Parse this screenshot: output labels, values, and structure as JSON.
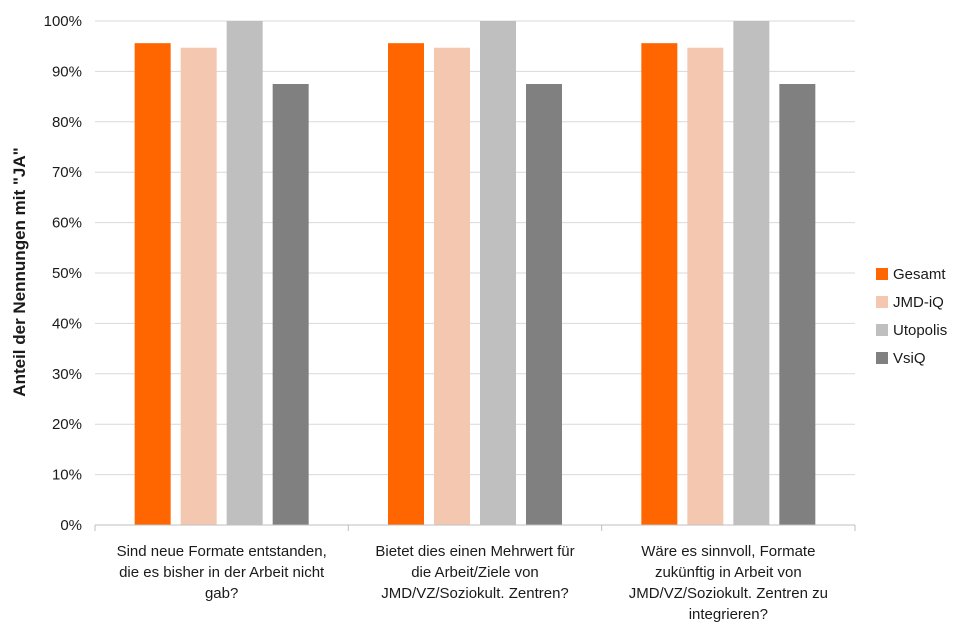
{
  "chart_data": {
    "type": "bar",
    "ylabel": "Anteil der Nennungen mit   \"JA\"",
    "ylim": [
      0,
      100
    ],
    "yticks": [
      0,
      10,
      20,
      30,
      40,
      50,
      60,
      70,
      80,
      90,
      100
    ],
    "ytick_format": "%",
    "grid": true,
    "legend_position": "right",
    "categories": [
      [
        "Sind neue Formate entstanden,",
        "die es bisher in der Arbeit nicht",
        "gab?"
      ],
      [
        "Bietet dies einen Mehrwert für",
        "die Arbeit/Ziele von",
        "JMD/VZ/Soziokult. Zentren?"
      ],
      [
        "Wäre es sinnvoll, Formate",
        "zukünftig  in Arbeit von",
        "JMD/VZ/Soziokult. Zentren zu",
        "integrieren?"
      ]
    ],
    "series": [
      {
        "name": "Gesamt",
        "color": "#ff6600",
        "values": [
          95.6,
          95.6,
          95.6
        ]
      },
      {
        "name": "JMD-iQ",
        "color": "#f4c8b0",
        "values": [
          94.7,
          94.7,
          94.7
        ]
      },
      {
        "name": "Utopolis",
        "color": "#bfbfbf",
        "values": [
          100,
          100,
          100
        ]
      },
      {
        "name": "VsiQ",
        "color": "#808080",
        "values": [
          87.5,
          87.5,
          87.5
        ]
      }
    ]
  }
}
